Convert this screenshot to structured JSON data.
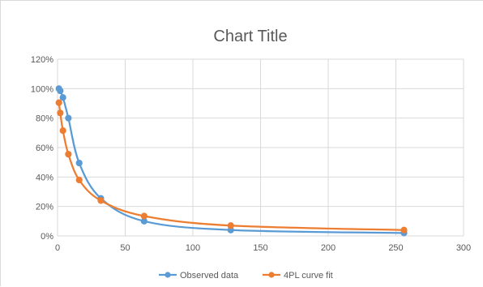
{
  "chart_data": {
    "type": "scatter",
    "title": "Chart Title",
    "xlabel": "",
    "ylabel": "",
    "xlim": [
      0,
      300
    ],
    "ylim": [
      0,
      1.2
    ],
    "x_ticks": [
      "0",
      "50",
      "100",
      "150",
      "200",
      "250",
      "300"
    ],
    "y_ticks": [
      "0%",
      "20%",
      "40%",
      "60%",
      "80%",
      "100%",
      "120%"
    ],
    "grid": true,
    "legend_position": "bottom",
    "series": [
      {
        "name": "Observed data",
        "color": "#5b9bd5",
        "x": [
          1,
          2,
          4,
          8,
          16,
          32,
          64,
          128,
          256
        ],
        "y": [
          1.0,
          0.985,
          0.94,
          0.8,
          0.495,
          0.255,
          0.1,
          0.04,
          0.02
        ]
      },
      {
        "name": "4PL curve fit",
        "color": "#ed7d31",
        "x": [
          1,
          2,
          4,
          8,
          16,
          32,
          64,
          128,
          256
        ],
        "y": [
          0.905,
          0.835,
          0.715,
          0.555,
          0.38,
          0.24,
          0.135,
          0.07,
          0.04
        ]
      }
    ]
  }
}
